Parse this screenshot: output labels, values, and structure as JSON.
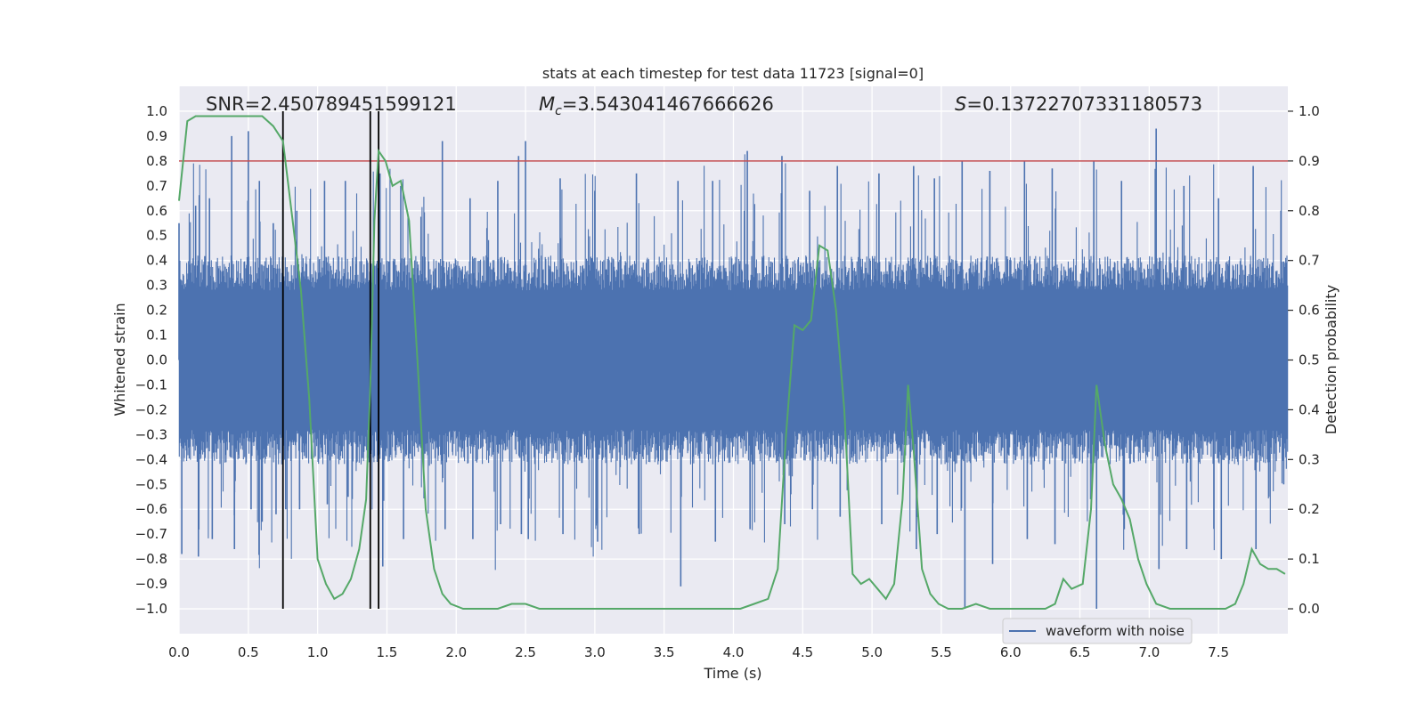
{
  "chart_data": {
    "type": "line",
    "title": "stats at each timestep for test data 11723 [signal=0]",
    "xlabel": "Time (s)",
    "ylabel_left": "Whitened strain",
    "ylabel_right": "Detection probability",
    "xlim": [
      0.0,
      8.0
    ],
    "ylim_left": [
      -1.1,
      1.1
    ],
    "ylim_right": [
      -0.05,
      1.05
    ],
    "x_ticks": [
      "0.0",
      "0.5",
      "1.0",
      "1.5",
      "2.0",
      "2.5",
      "3.0",
      "3.5",
      "4.0",
      "4.5",
      "5.0",
      "5.5",
      "6.0",
      "6.5",
      "7.0",
      "7.5"
    ],
    "y_ticks_left": [
      "1.0",
      "0.9",
      "0.8",
      "0.7",
      "0.6",
      "0.5",
      "0.4",
      "0.3",
      "0.2",
      "0.1",
      "0.0",
      "−0.1",
      "−0.2",
      "−0.3",
      "−0.4",
      "−0.5",
      "−0.6",
      "−0.7",
      "−0.8",
      "−0.9",
      "−1.0"
    ],
    "y_ticks_right": [
      "1.0",
      "0.9",
      "0.8",
      "0.7",
      "0.6",
      "0.5",
      "0.4",
      "0.3",
      "0.2",
      "0.1",
      "0.0"
    ],
    "grid": true,
    "legend_position": "bottom-right",
    "annotations": [
      {
        "label": "SNR=2.450789451599121",
        "prefix": "",
        "sub": "",
        "value": "SNR=2.450789451599121"
      },
      {
        "label": "Mc",
        "prefix": "M",
        "sub": "c",
        "value": "=3.543041467666626"
      },
      {
        "label": "S",
        "prefix": "S",
        "sub": "",
        "value": "=0.13722707331180573"
      }
    ],
    "threshold_line": {
      "y_right": 0.9,
      "color": "#c44e52"
    },
    "vertical_lines_x": [
      0.75,
      1.38,
      1.44
    ],
    "series": [
      {
        "name": "waveform with noise",
        "axis": "left",
        "color": "#4c72b0",
        "typical_envelope": 0.4,
        "spikes": [
          [
            0.0,
            0.55,
            -0.78
          ],
          [
            0.12,
            0.62,
            -0.79
          ],
          [
            0.22,
            0.65,
            -0.72
          ],
          [
            0.38,
            0.9,
            -0.76
          ],
          [
            0.5,
            0.92,
            -0.6
          ],
          [
            0.58,
            0.72,
            -0.65
          ],
          [
            0.68,
            0.55,
            -0.62
          ],
          [
            0.75,
            0.65,
            -0.6
          ],
          [
            0.85,
            0.6,
            -0.6
          ],
          [
            1.05,
            0.72,
            -0.58
          ],
          [
            1.2,
            0.72,
            -0.55
          ],
          [
            1.45,
            0.75,
            -0.83
          ],
          [
            1.6,
            0.7,
            -0.72
          ],
          [
            1.9,
            0.88,
            -0.68
          ],
          [
            2.1,
            0.65,
            -0.72
          ],
          [
            2.3,
            0.72,
            -0.66
          ],
          [
            2.45,
            0.82,
            -0.7
          ],
          [
            2.5,
            0.88,
            -0.72
          ],
          [
            2.75,
            0.73,
            -0.7
          ],
          [
            3.0,
            0.68,
            -0.73
          ],
          [
            3.3,
            0.75,
            -0.7
          ],
          [
            3.6,
            0.72,
            -0.91
          ],
          [
            3.85,
            0.72,
            -0.73
          ],
          [
            4.1,
            0.84,
            -0.68
          ],
          [
            4.35,
            0.82,
            -0.66
          ],
          [
            4.55,
            0.68,
            -0.6
          ],
          [
            4.75,
            0.78,
            -0.63
          ],
          [
            5.05,
            0.75,
            -0.66
          ],
          [
            5.3,
            0.78,
            -0.76
          ],
          [
            5.45,
            0.73,
            -0.7
          ],
          [
            5.65,
            0.8,
            -1.0
          ],
          [
            5.85,
            0.76,
            -0.82
          ],
          [
            6.1,
            0.8,
            -0.72
          ],
          [
            6.3,
            0.77,
            -0.74
          ],
          [
            6.6,
            0.8,
            -1.0
          ],
          [
            6.8,
            0.72,
            -0.68
          ],
          [
            7.05,
            0.93,
            -0.84
          ],
          [
            7.25,
            0.7,
            -0.76
          ],
          [
            7.5,
            0.65,
            -0.8
          ],
          [
            7.75,
            0.78,
            -0.76
          ],
          [
            7.95,
            0.6,
            -0.5
          ]
        ]
      },
      {
        "name": "detection probability",
        "axis": "right",
        "color": "#55a868",
        "x": [
          0.0,
          0.06,
          0.12,
          0.2,
          0.3,
          0.4,
          0.5,
          0.6,
          0.68,
          0.75,
          0.82,
          0.88,
          0.94,
          1.0,
          1.06,
          1.12,
          1.18,
          1.24,
          1.3,
          1.35,
          1.38,
          1.41,
          1.44,
          1.49,
          1.54,
          1.6,
          1.66,
          1.72,
          1.78,
          1.84,
          1.9,
          1.96,
          2.05,
          2.2,
          2.3,
          2.4,
          2.45,
          2.5,
          2.6,
          2.7,
          2.8,
          2.9,
          3.0,
          3.1,
          3.2,
          3.3,
          3.5,
          3.7,
          3.9,
          4.05,
          4.15,
          4.25,
          4.32,
          4.38,
          4.44,
          4.5,
          4.56,
          4.62,
          4.68,
          4.74,
          4.8,
          4.86,
          4.92,
          4.98,
          5.04,
          5.1,
          5.16,
          5.22,
          5.26,
          5.3,
          5.36,
          5.42,
          5.48,
          5.55,
          5.65,
          5.75,
          5.85,
          5.95,
          6.05,
          6.15,
          6.25,
          6.32,
          6.38,
          6.44,
          6.52,
          6.58,
          6.62,
          6.68,
          6.74,
          6.8,
          6.86,
          6.92,
          6.98,
          7.05,
          7.15,
          7.25,
          7.35,
          7.45,
          7.55,
          7.62,
          7.68,
          7.74,
          7.8,
          7.86,
          7.92,
          7.98
        ],
        "y": [
          0.82,
          0.98,
          0.99,
          0.99,
          0.99,
          0.99,
          0.99,
          0.99,
          0.97,
          0.94,
          0.78,
          0.64,
          0.42,
          0.1,
          0.05,
          0.02,
          0.03,
          0.06,
          0.12,
          0.22,
          0.45,
          0.78,
          0.92,
          0.9,
          0.85,
          0.86,
          0.78,
          0.5,
          0.2,
          0.08,
          0.03,
          0.01,
          0.0,
          0.0,
          0.0,
          0.01,
          0.01,
          0.01,
          0.0,
          0.0,
          0.0,
          0.0,
          0.0,
          0.0,
          0.0,
          0.0,
          0.0,
          0.0,
          0.0,
          0.0,
          0.01,
          0.02,
          0.08,
          0.35,
          0.57,
          0.56,
          0.58,
          0.73,
          0.72,
          0.6,
          0.4,
          0.07,
          0.05,
          0.06,
          0.04,
          0.02,
          0.05,
          0.22,
          0.45,
          0.32,
          0.08,
          0.03,
          0.01,
          0.0,
          0.0,
          0.01,
          0.0,
          0.0,
          0.0,
          0.0,
          0.0,
          0.01,
          0.06,
          0.04,
          0.05,
          0.2,
          0.45,
          0.33,
          0.25,
          0.22,
          0.18,
          0.1,
          0.05,
          0.01,
          0.0,
          0.0,
          0.0,
          0.0,
          0.0,
          0.01,
          0.05,
          0.12,
          0.09,
          0.08,
          0.08,
          0.07
        ]
      }
    ]
  }
}
